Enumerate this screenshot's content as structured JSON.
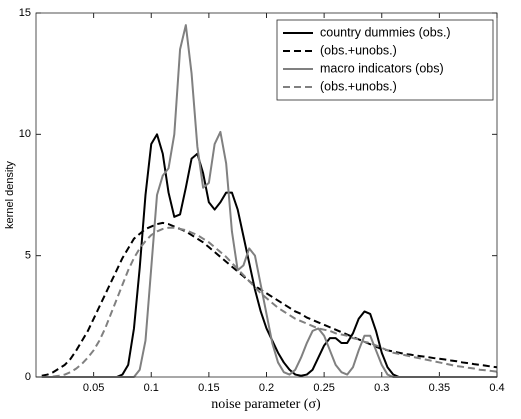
{
  "chart_data": {
    "type": "line",
    "xlabel": "noise parameter (σ)",
    "ylabel": "kernel density",
    "xlim": [
      0,
      0.4
    ],
    "ylim": [
      0,
      15
    ],
    "xticks": [
      0.05,
      0.1,
      0.15,
      0.2,
      0.25,
      0.3,
      0.35,
      0.4
    ],
    "yticks": [
      0,
      5,
      10,
      15
    ],
    "legend": "upper right",
    "x": [
      0.005,
      0.01,
      0.015,
      0.02,
      0.025,
      0.03,
      0.035,
      0.04,
      0.045,
      0.05,
      0.055,
      0.06,
      0.065,
      0.07,
      0.075,
      0.08,
      0.085,
      0.09,
      0.095,
      0.1,
      0.105,
      0.11,
      0.115,
      0.12,
      0.125,
      0.13,
      0.135,
      0.14,
      0.145,
      0.15,
      0.155,
      0.16,
      0.165,
      0.17,
      0.175,
      0.18,
      0.185,
      0.19,
      0.195,
      0.2,
      0.205,
      0.21,
      0.215,
      0.22,
      0.225,
      0.23,
      0.235,
      0.24,
      0.245,
      0.25,
      0.255,
      0.26,
      0.265,
      0.27,
      0.275,
      0.28,
      0.285,
      0.29,
      0.295,
      0.3,
      0.305,
      0.31,
      0.315,
      0.32,
      0.325,
      0.33,
      0.335,
      0.34,
      0.345,
      0.35,
      0.355,
      0.36,
      0.365,
      0.37,
      0.375,
      0.38,
      0.385,
      0.39,
      0.395,
      0.4
    ],
    "series": [
      {
        "name": "country dummies  (obs.)",
        "color": "#000000",
        "linestyle": "solid",
        "values": [
          0,
          0,
          0,
          0,
          0,
          0,
          0,
          0,
          0,
          0,
          0,
          0,
          0,
          0,
          0.1,
          0.5,
          2,
          4.5,
          7.5,
          9.6,
          10,
          9.2,
          7.6,
          6.6,
          6.7,
          7.8,
          9.0,
          9.2,
          8.4,
          7.2,
          6.9,
          7.2,
          7.6,
          7.6,
          6.9,
          5.8,
          4.7,
          3.6,
          2.7,
          2.0,
          1.5,
          1.0,
          0.6,
          0.3,
          0.1,
          0.05,
          0.1,
          0.3,
          0.8,
          1.3,
          1.6,
          1.6,
          1.4,
          1.4,
          1.8,
          2.4,
          2.7,
          2.6,
          1.9,
          1.0,
          0.4,
          0.1,
          0,
          0,
          0,
          0,
          0,
          0,
          0,
          0,
          0,
          0,
          0,
          0,
          0,
          0,
          0,
          0,
          0,
          0
        ]
      },
      {
        "name": "(obs.+unobs.)",
        "color": "#000000",
        "linestyle": "dashed",
        "values": [
          0.05,
          0.1,
          0.2,
          0.35,
          0.5,
          0.75,
          1.1,
          1.5,
          1.9,
          2.4,
          2.9,
          3.4,
          3.9,
          4.4,
          4.9,
          5.3,
          5.7,
          5.9,
          6.1,
          6.2,
          6.3,
          6.35,
          6.3,
          6.2,
          6.1,
          6.0,
          5.85,
          5.7,
          5.55,
          5.35,
          5.15,
          4.95,
          4.75,
          4.55,
          4.35,
          4.15,
          3.95,
          3.75,
          3.6,
          3.45,
          3.3,
          3.15,
          3.0,
          2.85,
          2.7,
          2.6,
          2.45,
          2.35,
          2.25,
          2.15,
          2.05,
          1.95,
          1.85,
          1.75,
          1.65,
          1.55,
          1.45,
          1.35,
          1.25,
          1.15,
          1.1,
          1.05,
          1.0,
          0.95,
          0.92,
          0.88,
          0.85,
          0.82,
          0.78,
          0.75,
          0.72,
          0.68,
          0.65,
          0.6,
          0.57,
          0.53,
          0.5,
          0.47,
          0.43,
          0.4
        ]
      },
      {
        "name": "macro indicators (obs)",
        "color": "#808080",
        "linestyle": "solid",
        "values": [
          0,
          0,
          0,
          0,
          0,
          0,
          0,
          0,
          0,
          0,
          0,
          0,
          0,
          0,
          0,
          0,
          0,
          0.3,
          1.5,
          4.5,
          7.5,
          8.3,
          8.6,
          10,
          13.5,
          14.5,
          12.5,
          9.5,
          7.8,
          8.0,
          9.6,
          10.1,
          8.8,
          6.0,
          4.4,
          4.6,
          5.3,
          5.0,
          3.8,
          2.6,
          1.4,
          0.6,
          0.2,
          0.1,
          0.3,
          0.8,
          1.4,
          1.9,
          2.0,
          1.7,
          1.1,
          0.5,
          0.2,
          0.1,
          0.4,
          1.1,
          1.7,
          1.7,
          1.1,
          0.5,
          0.1,
          0,
          0,
          0,
          0,
          0,
          0,
          0,
          0,
          0,
          0,
          0,
          0,
          0,
          0,
          0,
          0,
          0,
          0,
          0
        ]
      },
      {
        "name": "(obs.+unobs.)",
        "color": "#808080",
        "linestyle": "dashed",
        "values": [
          0,
          0,
          0.02,
          0.05,
          0.1,
          0.2,
          0.35,
          0.55,
          0.8,
          1.1,
          1.5,
          2.0,
          2.6,
          3.2,
          3.8,
          4.4,
          4.9,
          5.3,
          5.6,
          5.85,
          6.0,
          6.1,
          6.15,
          6.15,
          6.1,
          6.05,
          5.95,
          5.85,
          5.7,
          5.55,
          5.35,
          5.15,
          4.95,
          4.7,
          4.45,
          4.2,
          3.95,
          3.7,
          3.45,
          3.25,
          3.05,
          2.85,
          2.7,
          2.55,
          2.4,
          2.3,
          2.2,
          2.1,
          2.0,
          1.95,
          1.9,
          1.8,
          1.75,
          1.7,
          1.6,
          1.55,
          1.45,
          1.4,
          1.3,
          1.2,
          1.1,
          1.0,
          0.95,
          0.9,
          0.85,
          0.8,
          0.75,
          0.7,
          0.65,
          0.6,
          0.55,
          0.5,
          0.45,
          0.42,
          0.38,
          0.35,
          0.3,
          0.28,
          0.25,
          0.22
        ]
      }
    ]
  }
}
